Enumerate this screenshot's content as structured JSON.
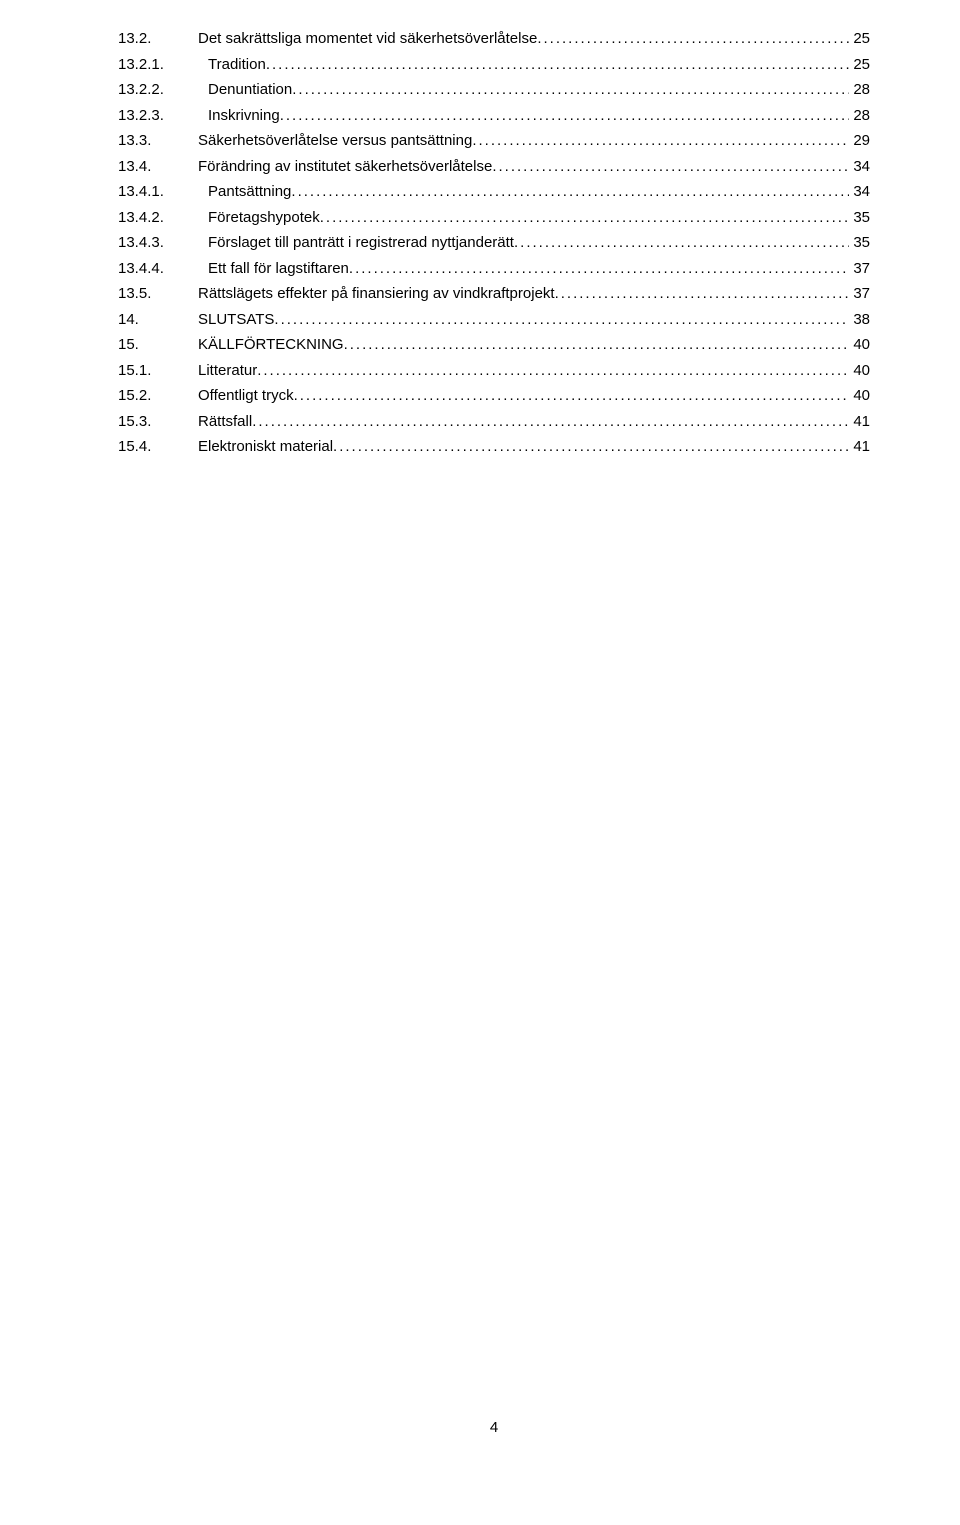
{
  "toc": [
    {
      "num": "13.2.",
      "title": "Det sakrättsliga momentet vid säkerhetsöverlåtelse",
      "page": "25",
      "level": 2
    },
    {
      "num": "13.2.1.",
      "title": "Tradition",
      "page": "25",
      "level": 3
    },
    {
      "num": "13.2.2.",
      "title": "Denuntiation",
      "page": "28",
      "level": 3
    },
    {
      "num": "13.2.3.",
      "title": "Inskrivning",
      "page": "28",
      "level": 3
    },
    {
      "num": "13.3.",
      "title": "Säkerhetsöverlåtelse versus pantsättning",
      "page": "29",
      "level": 2
    },
    {
      "num": "13.4.",
      "title": "Förändring av institutet säkerhetsöverlåtelse",
      "page": "34",
      "level": 2
    },
    {
      "num": "13.4.1.",
      "title": "Pantsättning",
      "page": "34",
      "level": 3
    },
    {
      "num": "13.4.2.",
      "title": "Företagshypotek",
      "page": "35",
      "level": 3
    },
    {
      "num": "13.4.3.",
      "title": "Förslaget till panträtt i registrerad nyttjanderätt",
      "page": "35",
      "level": 3
    },
    {
      "num": "13.4.4.",
      "title": "Ett fall för lagstiftaren",
      "page": "37",
      "level": 3
    },
    {
      "num": "13.5.",
      "title": "Rättslägets effekter på finansiering av vindkraftprojekt",
      "page": "37",
      "level": 2
    },
    {
      "num": "14.",
      "title": "SLUTSATS",
      "page": "38",
      "level": 1
    },
    {
      "num": "15.",
      "title": "KÄLLFÖRTECKNING",
      "page": "40",
      "level": 1
    },
    {
      "num": "15.1.",
      "title": "Litteratur",
      "page": "40",
      "level": 2
    },
    {
      "num": "15.2.",
      "title": "Offentligt tryck",
      "page": "40",
      "level": 2
    },
    {
      "num": "15.3.",
      "title": "Rättsfall",
      "page": "41",
      "level": 2
    },
    {
      "num": "15.4.",
      "title": "Elektroniskt material",
      "page": "41",
      "level": 2
    }
  ],
  "page_number": "4"
}
